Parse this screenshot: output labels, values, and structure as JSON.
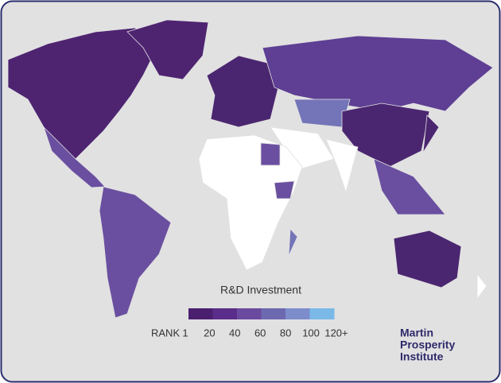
{
  "legend": {
    "title": "R&D Investment",
    "rank_label": "RANK",
    "ticks": [
      1,
      20,
      40,
      60,
      80,
      100,
      {
        "value": 120,
        "label": "120+"
      }
    ],
    "colors": [
      "#4b1f6f",
      "#5b2d8a",
      "#6a4a9e",
      "#6d69b0",
      "#7d8ccb",
      "#7ab9e8"
    ]
  },
  "logo": {
    "lines": [
      "Martin",
      "Prosperity",
      "Institute"
    ]
  }
}
